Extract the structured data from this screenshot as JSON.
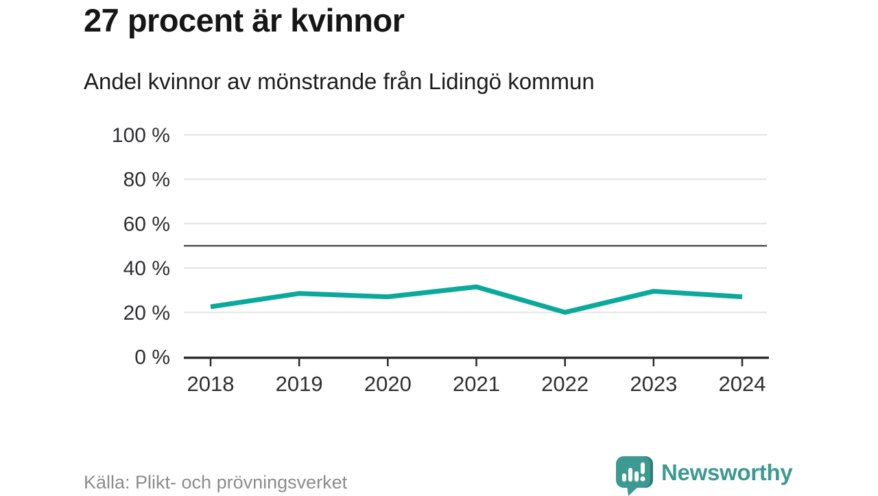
{
  "header": {
    "title": "27 procent är kvinnor",
    "subtitle": "Andel kvinnor av mönstrande från Lidingö kommun"
  },
  "chart_data": {
    "type": "line",
    "title": "27 procent är kvinnor",
    "subtitle": "Andel kvinnor av mönstrande från Lidingö kommun",
    "categories": [
      "2018",
      "2019",
      "2020",
      "2021",
      "2022",
      "2023",
      "2024"
    ],
    "values": [
      22.5,
      28.5,
      27,
      31.5,
      20,
      29.5,
      27
    ],
    "ylim": [
      0,
      100
    ],
    "ytick_values": [
      0,
      20,
      40,
      60,
      80,
      100
    ],
    "ytick_labels": [
      "0 %",
      "20 %",
      "40 %",
      "60 %",
      "80 %",
      "100 %"
    ],
    "reference_line": 50,
    "grid": true,
    "legend": "none",
    "line_color": "#0ba99b",
    "grid_color": "#e4e4e4",
    "reference_line_color": "#55565a",
    "axis_color": "#2e2f31",
    "tick_label_color": "#2e2f31"
  },
  "footer": {
    "source": "Källa: Plikt- och prövningsverket",
    "brand": "Newsworthy",
    "brand_color": "#3c9a92",
    "brand_icon_dark": "#2e7d76"
  }
}
